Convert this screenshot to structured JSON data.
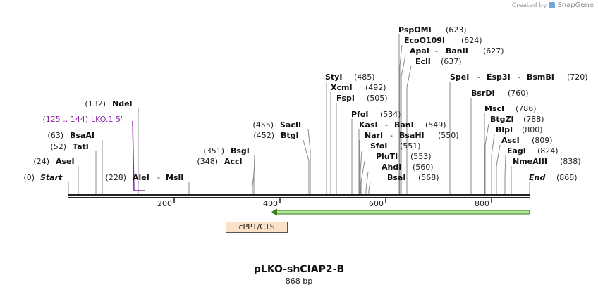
{
  "credit": {
    "prefix": "Created by",
    "brand": "SnapGene"
  },
  "sequence": {
    "name": "pLKO-shCIAP2-B",
    "length_label": "868 bp",
    "length": 868
  },
  "ticks": [
    "200",
    "400",
    "600",
    "800"
  ],
  "feature": {
    "name": "cPPT/CTS"
  },
  "primer": {
    "range": "(125 .. 144)",
    "name": "LKO.1 5'"
  },
  "markers": {
    "start": "Start",
    "start_pos": "(0)",
    "end": "End",
    "end_pos": "(868)"
  },
  "sites": [
    {
      "left_pos": "(24)",
      "name": "AseI"
    },
    {
      "left_pos": "(52)",
      "name": "TatI"
    },
    {
      "left_pos": "(63)",
      "name": "BsaAI"
    },
    {
      "left_pos": "(132)",
      "name": "NdeI"
    },
    {
      "left_pos": "(228)",
      "name": "AleI",
      "sep": " - ",
      "name2": "MslI"
    },
    {
      "left_pos": "(348)",
      "name": "AccI"
    },
    {
      "left_pos": "(351)",
      "name": "BsgI"
    },
    {
      "left_pos": "(452)",
      "name": "BtgI"
    },
    {
      "left_pos": "(455)",
      "name": "SacII"
    },
    {
      "name": "BsaI",
      "right_pos": "(568)"
    },
    {
      "name": "AhdI",
      "right_pos": "(560)"
    },
    {
      "name": "PluTI",
      "right_pos": "(553)"
    },
    {
      "name": "SfoI",
      "right_pos": "(551)"
    },
    {
      "name": "NarI",
      "sep": " - ",
      "name2": "BsaHI",
      "right_pos": "(550)"
    },
    {
      "name": "KasI",
      "sep": " - ",
      "name2": "BanI",
      "right_pos": "(549)"
    },
    {
      "name": "PfoI",
      "right_pos": "(534)"
    },
    {
      "name": "FspI",
      "right_pos": "(505)"
    },
    {
      "name": "XcmI",
      "right_pos": "(492)"
    },
    {
      "name": "StyI",
      "right_pos": "(485)"
    },
    {
      "name": "EclI",
      "right_pos": "(637)"
    },
    {
      "name": "ApaI",
      "sep": " - ",
      "name2": "BanII",
      "right_pos": "(627)"
    },
    {
      "name": "EcoO109I",
      "right_pos": "(624)"
    },
    {
      "name": "PspOMI",
      "right_pos": "(623)"
    },
    {
      "name": "SpeI",
      "sep": " - ",
      "name2": "Esp3I",
      "sep2": " - ",
      "name3": "BsmBI",
      "right_pos": "(720)"
    },
    {
      "name": "BsrDI",
      "right_pos": "(760)"
    },
    {
      "name": "MscI",
      "right_pos": "(786)"
    },
    {
      "name": "BtgZI",
      "right_pos": "(788)"
    },
    {
      "name": "BlpI",
      "right_pos": "(800)"
    },
    {
      "name": "AscI",
      "right_pos": "(809)"
    },
    {
      "name": "EagI",
      "right_pos": "(824)"
    },
    {
      "name": "NmeAIII",
      "right_pos": "(838)"
    }
  ]
}
